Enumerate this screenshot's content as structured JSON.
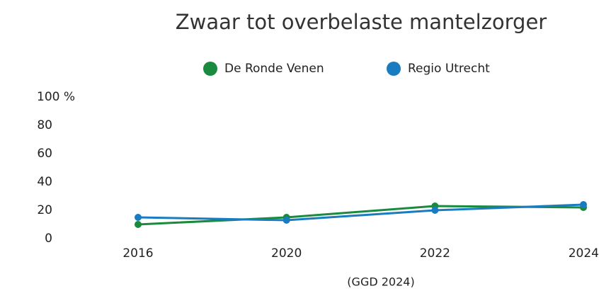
{
  "chart_data": {
    "type": "line",
    "title": "Zwaar tot overbelaste mantelzorger",
    "categories": [
      "2016",
      "2020",
      "2022",
      "2024"
    ],
    "series": [
      {
        "name": "De Ronde Venen",
        "color": "#1a8a3e",
        "values": [
          10,
          15,
          23,
          22
        ]
      },
      {
        "name": "Regio Utrecht",
        "color": "#1a7cc0",
        "values": [
          15,
          13,
          20,
          24
        ]
      }
    ],
    "ylim": [
      0,
      100
    ],
    "yticks": [
      0,
      20,
      40,
      60,
      80,
      {
        "value": 100,
        "label": "100 %"
      }
    ],
    "grid": false,
    "legend": "top",
    "source": "(GGD 2024)"
  }
}
